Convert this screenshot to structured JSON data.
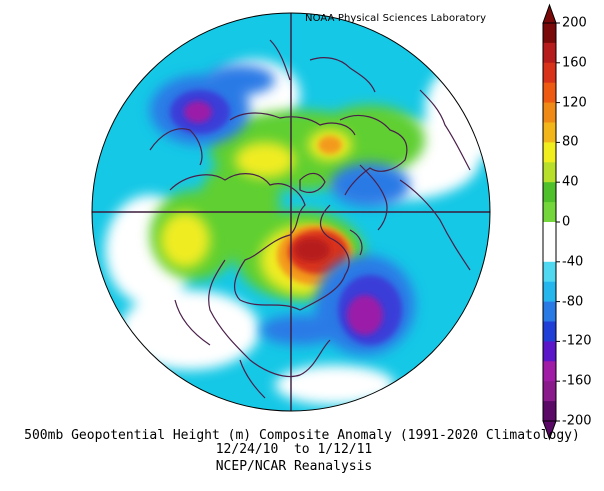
{
  "credit": "NOAA Physical Sciences Laboratory",
  "caption": {
    "line1": "500mb Geopotential Height (m) Composite Anomaly (1991-2020 Climatology)",
    "line2": "12/24/10  to 1/12/11",
    "line3": "NCEP/NCAR Reanalysis"
  },
  "colorbar": {
    "ticks": [
      "200",
      "160",
      "120",
      "80",
      "40",
      "0",
      "-40",
      "-80",
      "-120",
      "-160",
      "-200"
    ],
    "colors": [
      "#5a0a66",
      "#8a1a8c",
      "#a11ca6",
      "#5a16c8",
      "#1f3fd6",
      "#2a7ae6",
      "#25b6ee",
      "#4fd8f0",
      "#ffffff",
      "#ffffff",
      "#73d63a",
      "#4ec12a",
      "#b8e02a",
      "#f1ee1e",
      "#f3b61a",
      "#f08a16",
      "#ee5a12",
      "#d8321a",
      "#b71c1c",
      "#7a0a0a"
    ]
  },
  "map_colors": {
    "background": "#15c8e6",
    "coast": "#4a1f4a",
    "grid": "#3a1a3a"
  }
}
